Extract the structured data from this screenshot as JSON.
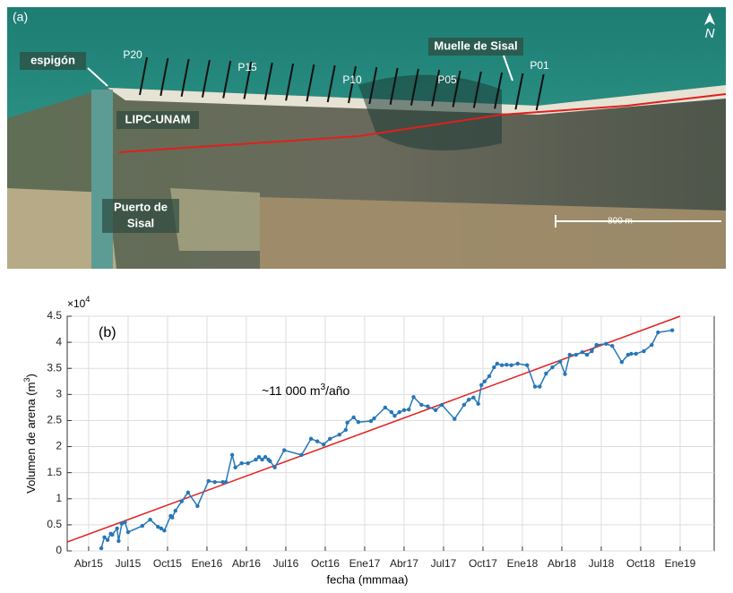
{
  "map": {
    "panel": "(a)",
    "north": "N",
    "espigon": "espigón",
    "muelle": "Muelle de Sisal",
    "lipc": "LIPC-UNAM",
    "puerto": [
      "Puerto de",
      "Sisal"
    ],
    "scale": "800 m",
    "transects": [
      "P20",
      "P15",
      "P10",
      "P05",
      "P01"
    ]
  },
  "chart_data": {
    "type": "line",
    "panel": "(b)",
    "xlabel": "fecha (mmmaa)",
    "ylabel": {
      "text": "Volumen de arena (m",
      "sup": "3",
      "suffix": ")"
    },
    "yexponent": {
      "base": "×10",
      "sup": "4"
    },
    "annotation": {
      "text": "~11 000 m",
      "sup": "3",
      "suffix": "/año"
    },
    "x": [
      2015.33,
      2015.35,
      2015.37,
      2015.39,
      2015.4,
      2015.43,
      2015.44,
      2015.46,
      2015.48,
      2015.5,
      2015.59,
      2015.64,
      2015.69,
      2015.71,
      2015.73,
      2015.77,
      2015.78,
      2015.8,
      2015.84,
      2015.88,
      2015.94,
      2016.01,
      2016.05,
      2016.1,
      2016.12,
      2016.16,
      2016.18,
      2016.22,
      2016.26,
      2016.31,
      2016.33,
      2016.35,
      2016.37,
      2016.39,
      2016.4,
      2016.43,
      2016.49,
      2016.6,
      2016.66,
      2016.7,
      2016.74,
      2016.78,
      2016.84,
      2016.88,
      2016.89,
      2016.93,
      2016.96,
      2017.04,
      2017.06,
      2017.13,
      2017.17,
      2017.19,
      2017.22,
      2017.25,
      2017.28,
      2017.31,
      2017.36,
      2017.4,
      2017.45,
      2017.49,
      2017.57,
      2017.63,
      2017.66,
      2017.69,
      2017.72,
      2017.74,
      2017.76,
      2017.79,
      2017.82,
      2017.84,
      2017.87,
      2017.9,
      2017.93,
      2017.97,
      2018.03,
      2018.08,
      2018.11,
      2018.15,
      2018.19,
      2018.24,
      2018.27,
      2018.3,
      2018.34,
      2018.38,
      2018.41,
      2018.44,
      2018.47,
      2018.53,
      2018.57,
      2018.63,
      2018.67,
      2018.69,
      2018.72,
      2018.77,
      2018.82,
      2018.86,
      2018.95
    ],
    "values": [
      0.05,
      0.26,
      0.21,
      0.33,
      0.31,
      0.43,
      0.19,
      0.52,
      0.55,
      0.36,
      0.48,
      0.6,
      0.46,
      0.43,
      0.39,
      0.67,
      0.64,
      0.77,
      0.95,
      1.12,
      0.86,
      1.34,
      1.32,
      1.32,
      1.32,
      1.84,
      1.6,
      1.68,
      1.68,
      1.75,
      1.8,
      1.75,
      1.8,
      1.75,
      1.72,
      1.6,
      1.93,
      1.84,
      2.15,
      2.1,
      2.04,
      2.15,
      2.23,
      2.32,
      2.46,
      2.56,
      2.47,
      2.49,
      2.54,
      2.75,
      2.66,
      2.59,
      2.66,
      2.7,
      2.71,
      2.95,
      2.8,
      2.77,
      2.7,
      2.8,
      2.53,
      2.8,
      2.9,
      2.94,
      2.82,
      3.18,
      3.25,
      3.35,
      3.52,
      3.59,
      3.56,
      3.57,
      3.56,
      3.59,
      3.56,
      3.15,
      3.15,
      3.4,
      3.52,
      3.63,
      3.39,
      3.76,
      3.76,
      3.81,
      3.76,
      3.83,
      3.95,
      3.97,
      3.93,
      3.62,
      3.76,
      3.78,
      3.78,
      3.83,
      3.95,
      4.19,
      4.23
    ],
    "color": "#2677b8",
    "trend": {
      "x": [
        2015.114,
        2019.0
      ],
      "values": [
        0.17,
        4.5
      ],
      "color": "#e0201c"
    },
    "xlim": [
      2015.114,
      2019.216
    ],
    "ylim": [
      0,
      4.5
    ],
    "xticks": [
      {
        "value": 2015.25,
        "label": "Abr15"
      },
      {
        "value": 2015.5,
        "label": "Jul15"
      },
      {
        "value": 2015.75,
        "label": "Oct15"
      },
      {
        "value": 2016.0,
        "label": "Ene16"
      },
      {
        "value": 2016.25,
        "label": "Abr16"
      },
      {
        "value": 2016.5,
        "label": "Jul16"
      },
      {
        "value": 2016.75,
        "label": "Oct16"
      },
      {
        "value": 2017.0,
        "label": "Ene17"
      },
      {
        "value": 2017.25,
        "label": "Abr17"
      },
      {
        "value": 2017.5,
        "label": "Jul17"
      },
      {
        "value": 2017.75,
        "label": "Oct17"
      },
      {
        "value": 2018.0,
        "label": "Ene18"
      },
      {
        "value": 2018.25,
        "label": "Abr18"
      },
      {
        "value": 2018.5,
        "label": "Jul18"
      },
      {
        "value": 2018.75,
        "label": "Oct18"
      },
      {
        "value": 2019.0,
        "label": "Ene19"
      }
    ],
    "yticks": [
      0,
      0.5,
      1,
      1.5,
      2,
      2.5,
      3,
      3.5,
      4,
      4.5
    ],
    "grid": true
  }
}
